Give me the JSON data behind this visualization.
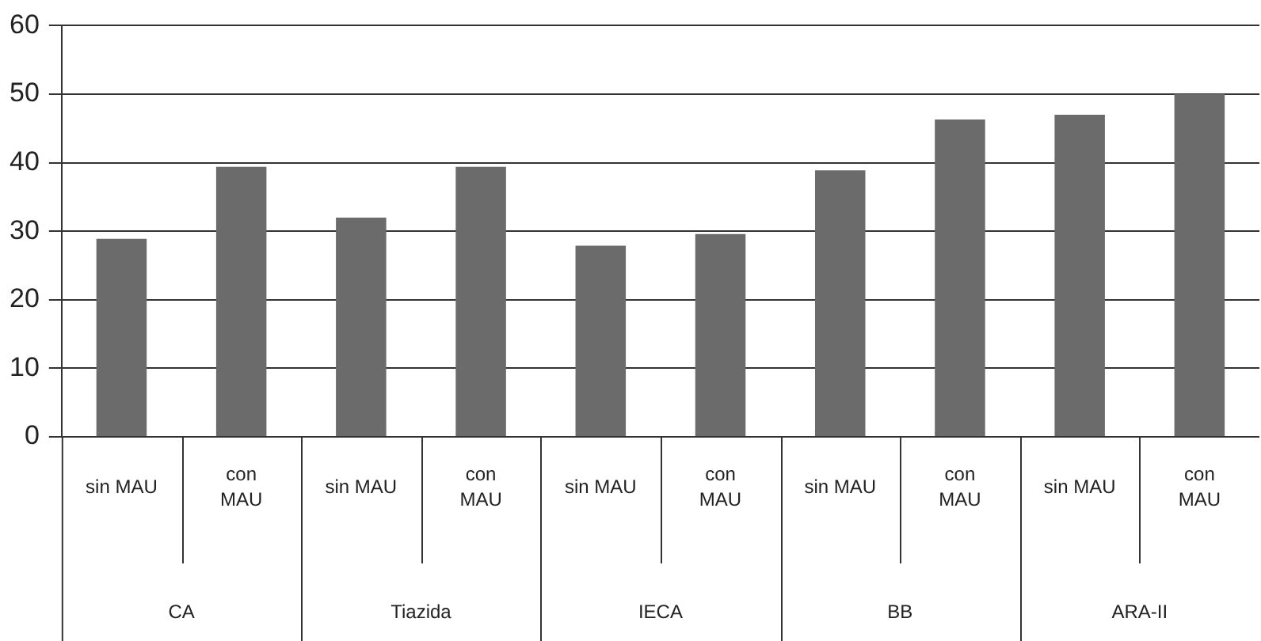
{
  "chart_data": {
    "type": "bar",
    "categories": [
      "sin MAU",
      "con\nMAU",
      "sin MAU",
      "con\nMAU",
      "sin MAU",
      "con\nMAU",
      "sin MAU",
      "con\nMAU",
      "sin MAU",
      "con\nMAU"
    ],
    "values": [
      28.9,
      39.4,
      32.0,
      39.4,
      27.9,
      29.6,
      38.9,
      46.3,
      47.0,
      50
    ],
    "color": "#6b6b6b",
    "annotations": [
      "CA",
      "Tiazida",
      "IECA",
      "BB",
      "ARA-II"
    ],
    "ylim": [
      0,
      60
    ],
    "yticks": [
      0,
      10,
      20,
      30,
      40,
      50,
      60
    ],
    "grid": "y",
    "legend": false
  }
}
